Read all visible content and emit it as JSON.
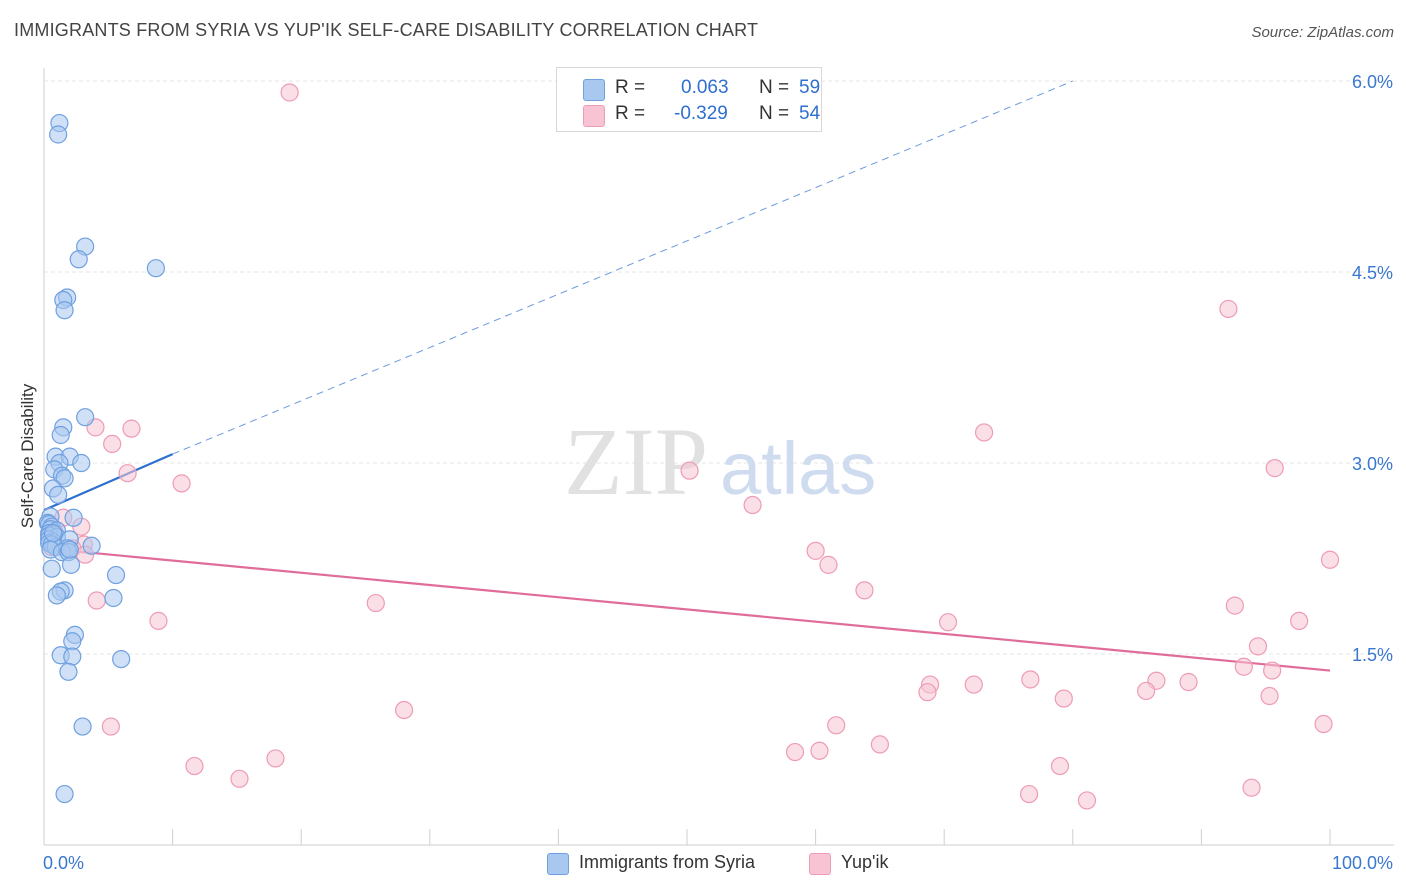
{
  "title": "IMMIGRANTS FROM SYRIA VS YUP'IK SELF-CARE DISABILITY CORRELATION CHART",
  "source": "Source: ZipAtlas.com",
  "watermark": {
    "zip": "ZIP",
    "atlas": "atlas"
  },
  "stats": {
    "r_label": "R =",
    "n_label": "N =",
    "rows": [
      {
        "r": "0.063",
        "n": "59"
      },
      {
        "r": "-0.329",
        "n": "54"
      }
    ]
  },
  "legend": [
    "Immigrants from Syria",
    "Yup'ik"
  ],
  "colors": {
    "blue_fill": "#a9c8f0",
    "blue_stroke": "#6fa0e0",
    "blue_line": "#2f6fd0",
    "pink_fill": "#f8c4d4",
    "pink_stroke": "#ee9bb5",
    "pink_line": "#e06c9a",
    "tick_text": "#3a78d0",
    "grid": "#e6e6e6"
  },
  "chart_data": {
    "type": "scatter",
    "title": "IMMIGRANTS FROM SYRIA VS YUP'IK SELF-CARE DISABILITY CORRELATION CHART",
    "xlabel": "",
    "ylabel": "Self-Care Disability",
    "xlim": [
      0,
      100
    ],
    "ylim": [
      0,
      6.3
    ],
    "x_tick_labels": [
      "0.0%",
      "100.0%"
    ],
    "y_ticks": [
      1.5,
      3.0,
      4.5,
      6.0
    ],
    "y_tick_labels": [
      "1.5%",
      "3.0%",
      "4.5%",
      "6.0%"
    ],
    "grid": true,
    "legend_position": "bottom-center",
    "series": [
      {
        "name": "Immigrants from Syria",
        "r": 0.063,
        "n": 59,
        "trend": {
          "x0": 0,
          "y0": 2.63,
          "x1": 10,
          "y1": 3.07,
          "dash_x1": 80,
          "dash_y1": 6.0
        },
        "points": [
          [
            1.2,
            5.67
          ],
          [
            1.1,
            5.58
          ],
          [
            3.2,
            4.7
          ],
          [
            2.7,
            4.6
          ],
          [
            8.7,
            4.53
          ],
          [
            1.8,
            4.3
          ],
          [
            1.5,
            4.28
          ],
          [
            1.6,
            4.2
          ],
          [
            3.2,
            3.36
          ],
          [
            1.5,
            3.28
          ],
          [
            1.3,
            3.22
          ],
          [
            0.9,
            3.05
          ],
          [
            2.0,
            3.05
          ],
          [
            2.9,
            3.0
          ],
          [
            1.2,
            3.0
          ],
          [
            0.8,
            2.95
          ],
          [
            1.4,
            2.9
          ],
          [
            1.6,
            2.88
          ],
          [
            0.7,
            2.8
          ],
          [
            1.1,
            2.75
          ],
          [
            0.5,
            2.58
          ],
          [
            2.3,
            2.57
          ],
          [
            0.3,
            2.53
          ],
          [
            0.4,
            2.52
          ],
          [
            0.6,
            2.5
          ],
          [
            0.5,
            2.48
          ],
          [
            1.0,
            2.47
          ],
          [
            0.4,
            2.45
          ],
          [
            0.8,
            2.44
          ],
          [
            0.4,
            2.43
          ],
          [
            1.0,
            2.42
          ],
          [
            0.4,
            2.4
          ],
          [
            2.0,
            2.4
          ],
          [
            0.7,
            2.38
          ],
          [
            0.4,
            2.37
          ],
          [
            0.6,
            2.36
          ],
          [
            3.7,
            2.35
          ],
          [
            0.9,
            2.34
          ],
          [
            1.8,
            2.33
          ],
          [
            0.5,
            2.32
          ],
          [
            1.4,
            2.3
          ],
          [
            1.9,
            2.3
          ],
          [
            2.1,
            2.2
          ],
          [
            0.6,
            2.17
          ],
          [
            5.6,
            2.12
          ],
          [
            1.6,
            2.0
          ],
          [
            1.3,
            1.99
          ],
          [
            1.0,
            1.96
          ],
          [
            5.4,
            1.94
          ],
          [
            2.4,
            1.65
          ],
          [
            2.2,
            1.6
          ],
          [
            1.3,
            1.49
          ],
          [
            2.2,
            1.48
          ],
          [
            6.0,
            1.46
          ],
          [
            1.9,
            1.36
          ],
          [
            3.0,
            0.93
          ],
          [
            1.6,
            0.4
          ],
          [
            2.0,
            2.32
          ],
          [
            0.7,
            2.45
          ]
        ]
      },
      {
        "name": "Yup'ik",
        "r": -0.329,
        "n": 54,
        "trend": {
          "x0": 0,
          "y0": 2.33,
          "x1": 100,
          "y1": 1.37
        },
        "points": [
          [
            19.1,
            5.91
          ],
          [
            92.1,
            4.21
          ],
          [
            4.0,
            3.28
          ],
          [
            6.8,
            3.27
          ],
          [
            5.3,
            3.15
          ],
          [
            73.1,
            3.24
          ],
          [
            95.7,
            2.96
          ],
          [
            50.2,
            2.94
          ],
          [
            6.5,
            2.92
          ],
          [
            10.7,
            2.84
          ],
          [
            55.1,
            2.67
          ],
          [
            1.5,
            2.57
          ],
          [
            2.9,
            2.5
          ],
          [
            0.8,
            2.46
          ],
          [
            3.1,
            2.36
          ],
          [
            2.2,
            2.33
          ],
          [
            3.2,
            2.28
          ],
          [
            0.6,
            2.34
          ],
          [
            100.0,
            2.24
          ],
          [
            60.0,
            2.31
          ],
          [
            61.0,
            2.2
          ],
          [
            63.8,
            2.0
          ],
          [
            4.1,
            1.92
          ],
          [
            25.8,
            1.9
          ],
          [
            92.6,
            1.88
          ],
          [
            8.9,
            1.76
          ],
          [
            70.3,
            1.75
          ],
          [
            97.6,
            1.76
          ],
          [
            94.4,
            1.56
          ],
          [
            93.3,
            1.4
          ],
          [
            95.5,
            1.37
          ],
          [
            76.7,
            1.3
          ],
          [
            86.5,
            1.29
          ],
          [
            89.0,
            1.28
          ],
          [
            72.3,
            1.26
          ],
          [
            68.9,
            1.26
          ],
          [
            85.7,
            1.21
          ],
          [
            68.7,
            1.2
          ],
          [
            95.3,
            1.17
          ],
          [
            79.3,
            1.15
          ],
          [
            28.0,
            1.06
          ],
          [
            5.2,
            0.93
          ],
          [
            61.6,
            0.94
          ],
          [
            99.5,
            0.95
          ],
          [
            65.0,
            0.79
          ],
          [
            58.4,
            0.73
          ],
          [
            60.3,
            0.74
          ],
          [
            18.0,
            0.68
          ],
          [
            11.7,
            0.62
          ],
          [
            79.0,
            0.62
          ],
          [
            15.2,
            0.52
          ],
          [
            76.6,
            0.4
          ],
          [
            81.1,
            0.35
          ],
          [
            93.9,
            0.45
          ]
        ]
      }
    ]
  }
}
